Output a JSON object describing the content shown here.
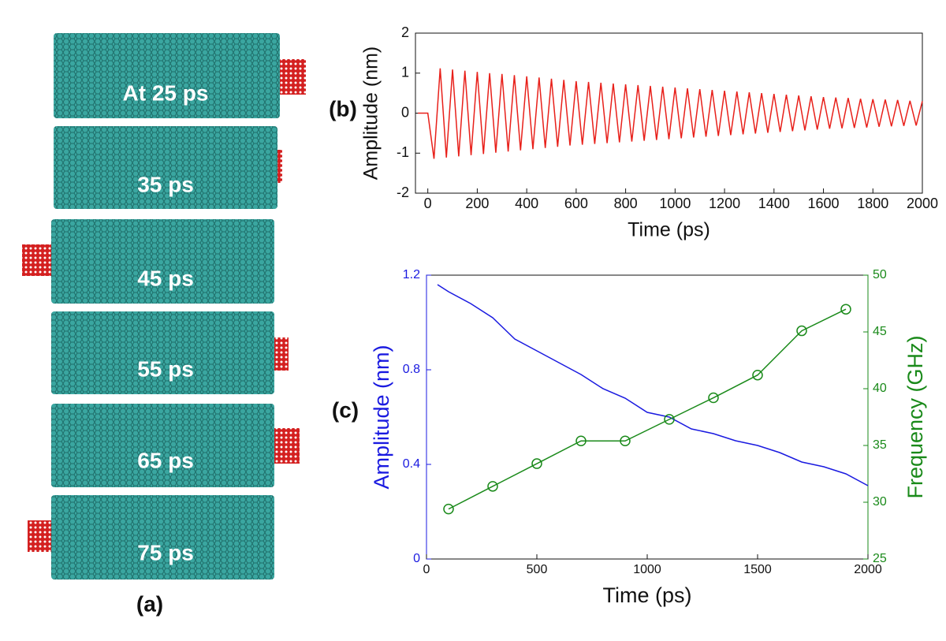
{
  "panel_a": {
    "label": "(a)",
    "frames": [
      "At 25 ps",
      "35 ps",
      "45 ps",
      "55 ps",
      "65 ps",
      "75 ps"
    ]
  },
  "chart_data": [
    {
      "type": "line",
      "panel_label": "(b)",
      "xlabel": "Time (ps)",
      "ylabel": "Amplitude (nm)",
      "xlim": [
        -50,
        2000
      ],
      "xticks": [
        0,
        200,
        400,
        600,
        800,
        1000,
        1200,
        1400,
        1600,
        1800,
        2000
      ],
      "ylim": [
        -2,
        2
      ],
      "yticks": [
        -2,
        -1,
        0,
        1,
        2
      ],
      "x": [
        -40,
        0,
        25,
        50,
        75,
        100,
        125,
        150,
        175,
        200,
        225,
        250,
        275,
        300,
        325,
        350,
        375,
        400,
        425,
        450,
        475,
        500,
        525,
        550,
        575,
        600,
        625,
        650,
        675,
        700,
        725,
        750,
        775,
        800,
        825,
        850,
        875,
        900,
        925,
        950,
        975,
        1000,
        1025,
        1050,
        1075,
        1100,
        1125,
        1150,
        1175,
        1200,
        1225,
        1250,
        1275,
        1300,
        1325,
        1350,
        1375,
        1400,
        1425,
        1450,
        1475,
        1500,
        1525,
        1550,
        1575,
        1600,
        1625,
        1650,
        1675,
        1700,
        1725,
        1750,
        1775,
        1800,
        1825,
        1850,
        1875,
        1900,
        1925,
        1950,
        1975,
        2000
      ],
      "series": [
        {
          "color": "#e8201a",
          "values": [
            0,
            0,
            -1.14,
            1.12,
            -1.11,
            1.09,
            -1.08,
            1.06,
            -1.05,
            1.03,
            -1.02,
            1.0,
            -0.99,
            0.98,
            -0.96,
            0.95,
            -0.93,
            0.92,
            -0.9,
            0.89,
            -0.87,
            0.86,
            -0.84,
            0.83,
            -0.81,
            0.8,
            -0.79,
            0.78,
            -0.77,
            0.76,
            -0.75,
            0.74,
            -0.73,
            0.72,
            -0.71,
            0.7,
            -0.69,
            0.68,
            -0.67,
            0.66,
            -0.65,
            0.64,
            -0.63,
            0.62,
            -0.61,
            0.6,
            -0.59,
            0.58,
            -0.57,
            0.56,
            -0.55,
            0.54,
            -0.53,
            0.52,
            -0.51,
            0.5,
            -0.49,
            0.48,
            -0.47,
            0.46,
            -0.45,
            0.44,
            -0.43,
            0.42,
            -0.41,
            0.4,
            -0.39,
            0.39,
            -0.38,
            0.38,
            -0.37,
            0.36,
            -0.36,
            0.35,
            -0.34,
            0.34,
            -0.33,
            0.33,
            -0.32,
            0.31,
            -0.31,
            0.3
          ]
        }
      ]
    },
    {
      "type": "line",
      "panel_label": "(c)",
      "xlabel": "Time (ps)",
      "ylabel": "Amplitude (nm)",
      "y2label": "Frequency (GHz)",
      "xlim": [
        0,
        2000
      ],
      "xticks": [
        0,
        500,
        1000,
        1500,
        2000
      ],
      "ylim": [
        0,
        1.2
      ],
      "yticks": [
        0,
        0.4,
        0.8,
        1.2
      ],
      "y2lim": [
        25,
        50
      ],
      "y2ticks": [
        25,
        30,
        35,
        40,
        45,
        50
      ],
      "series": [
        {
          "color": "#1a1ae0",
          "x": [
            50,
            100,
            200,
            300,
            400,
            500,
            600,
            700,
            800,
            900,
            1000,
            1100,
            1200,
            1300,
            1400,
            1500,
            1600,
            1700,
            1800,
            1900,
            2000
          ],
          "values": [
            1.16,
            1.13,
            1.08,
            1.02,
            0.93,
            0.88,
            0.83,
            0.78,
            0.72,
            0.68,
            0.62,
            0.6,
            0.55,
            0.53,
            0.5,
            0.48,
            0.45,
            0.41,
            0.39,
            0.36,
            0.31
          ]
        },
        {
          "color": "#1a8a1a",
          "axis": "y2",
          "marker": "circle",
          "x": [
            100,
            300,
            500,
            700,
            900,
            1100,
            1300,
            1500,
            1700,
            1900
          ],
          "values": [
            29.4,
            31.4,
            33.4,
            35.4,
            35.4,
            37.3,
            39.2,
            41.2,
            45.1,
            47.0
          ]
        }
      ]
    }
  ]
}
